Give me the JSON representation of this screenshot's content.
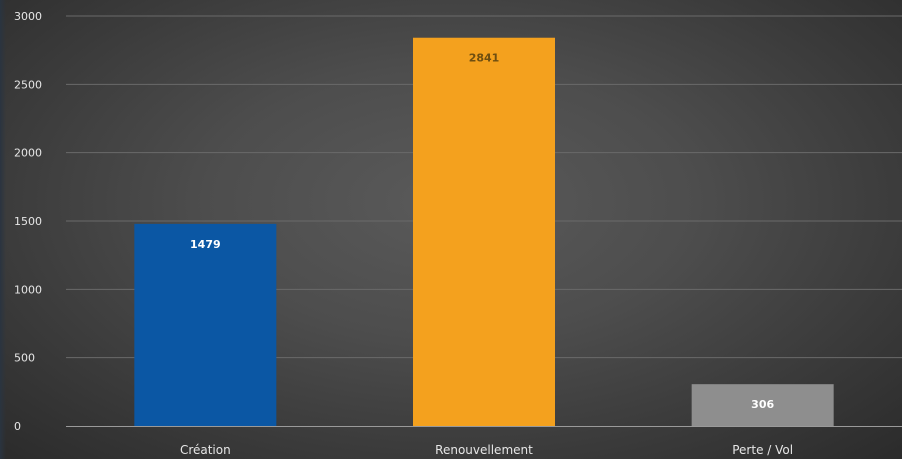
{
  "chart_data": {
    "type": "bar",
    "title": "",
    "xlabel": "",
    "ylabel": "",
    "categories": [
      "Création",
      "Renouvellement",
      "Perte / Vol"
    ],
    "values": [
      1479,
      2841,
      306
    ],
    "data_labels": [
      "1479",
      "2841",
      "306"
    ],
    "bar_colors": [
      "#0b57a4",
      "#f4a11e",
      "#8e8e8e"
    ],
    "data_label_colors": [
      "#ffffff",
      "#6e4e10",
      "#ffffff"
    ],
    "ylim": [
      0,
      3000
    ],
    "yticks": [
      0,
      500,
      1000,
      1500,
      2000,
      2500,
      3000
    ],
    "ytick_labels": [
      "0",
      "500",
      "1000",
      "1500",
      "2000",
      "2500",
      "3000"
    ],
    "grid": true,
    "legend": "none"
  },
  "colors": {
    "background": "#4d4d4d",
    "gridline": "#6a6a6a",
    "axis": "#9a9a9a",
    "text": "#e6e6e6"
  }
}
